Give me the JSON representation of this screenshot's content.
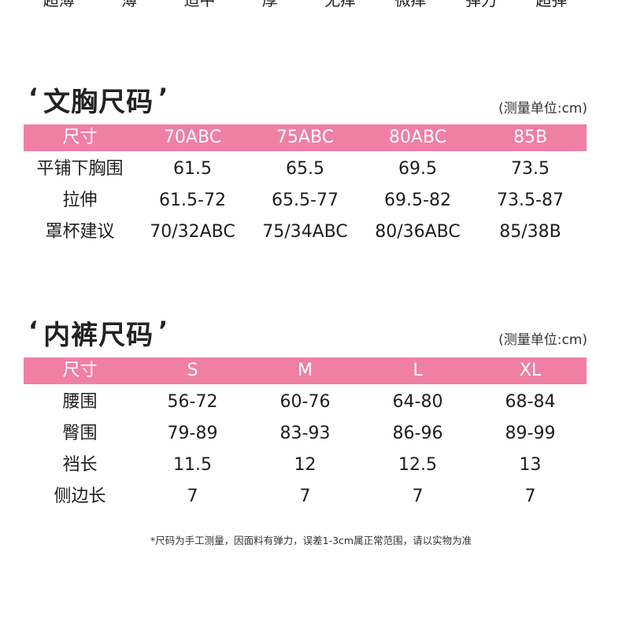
{
  "top_strip": [
    "超薄",
    "薄",
    "适中",
    "厚",
    "无痒",
    "微痒",
    "弹力",
    "超弹"
  ],
  "bra": {
    "title": "文胸尺码",
    "quote_open": "‘",
    "quote_close": "’",
    "unit": "(测量单位:cm)",
    "header": [
      "尺寸",
      "70ABC",
      "75ABC",
      "80ABC",
      "85B"
    ],
    "rows": [
      [
        "平铺下胸围",
        "61.5",
        "65.5",
        "69.5",
        "73.5"
      ],
      [
        "拉伸",
        "61.5-72",
        "65.5-77",
        "69.5-82",
        "73.5-87"
      ],
      [
        "罩杯建议",
        "70/32ABC",
        "75/34ABC",
        "80/36ABC",
        "85/38B"
      ]
    ]
  },
  "panty": {
    "title": "内裤尺码",
    "quote_open": "‘",
    "quote_close": "’",
    "unit": "(测量单位:cm)",
    "header": [
      "尺寸",
      "S",
      "M",
      "L",
      "XL"
    ],
    "rows": [
      [
        "腰围",
        "56-72",
        "60-76",
        "64-80",
        "68-84"
      ],
      [
        "臀围",
        "79-89",
        "83-93",
        "86-96",
        "89-99"
      ],
      [
        "裆长",
        "11.5",
        "12",
        "12.5",
        "13"
      ],
      [
        "侧边长",
        "7",
        "7",
        "7",
        "7"
      ]
    ]
  },
  "note": "*尺码为手工测量，因面料有弹力，误差1-3cm属正常范围，请以实物为准",
  "colors": {
    "header_bg": "#f07fa4",
    "header_text": "#ffffff",
    "text": "#1e1e1e"
  }
}
